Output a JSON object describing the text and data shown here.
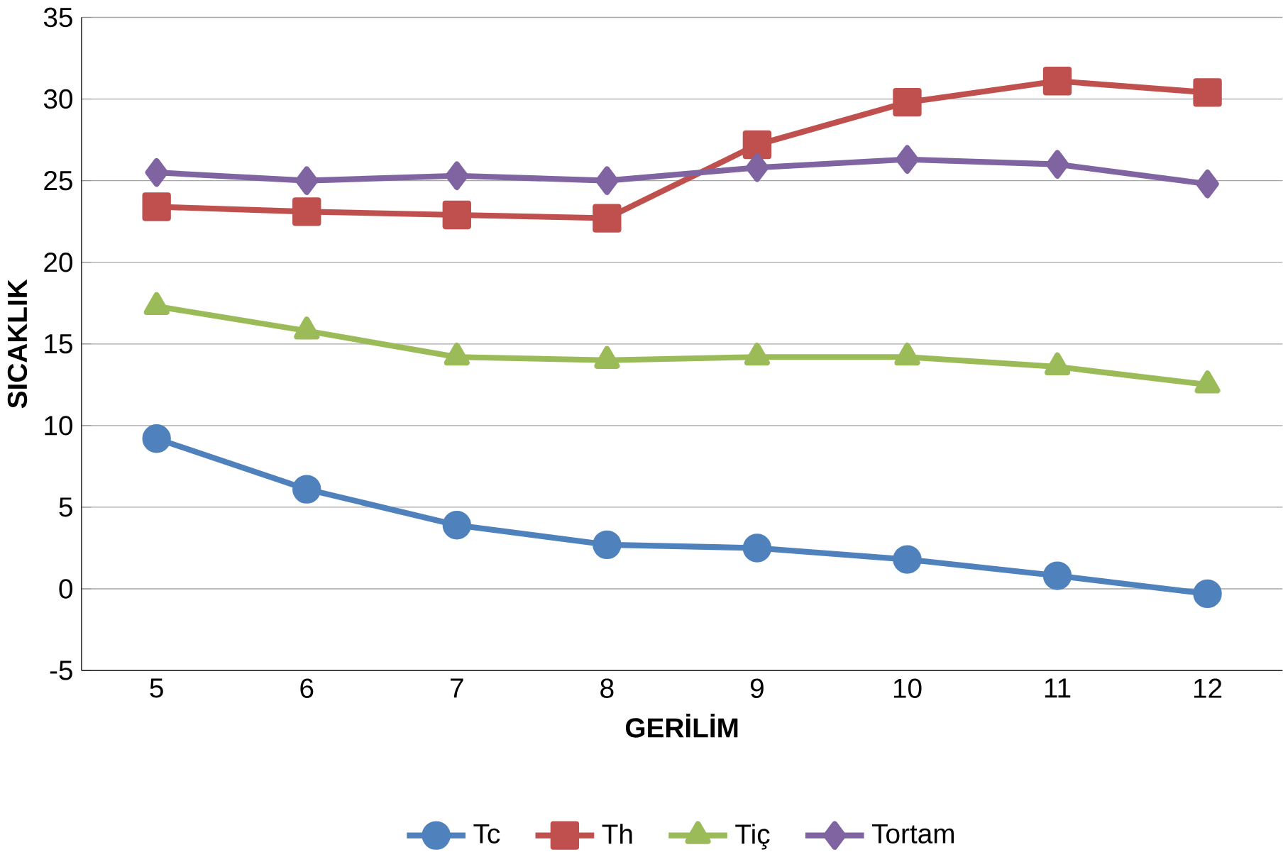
{
  "chart_data": {
    "type": "line",
    "xlabel": "GERİLİM",
    "ylabel": "SICAKLIK",
    "categories": [
      "5",
      "6",
      "7",
      "8",
      "9",
      "10",
      "11",
      "12"
    ],
    "series": [
      {
        "name": "Tc",
        "color": "#4f81bd",
        "marker": "circle",
        "values": [
          9.2,
          6.1,
          3.9,
          2.7,
          2.5,
          1.8,
          0.8,
          -0.3
        ]
      },
      {
        "name": "Th",
        "color": "#c0504d",
        "marker": "square",
        "values": [
          23.4,
          23.1,
          22.9,
          22.7,
          27.2,
          29.8,
          31.1,
          30.4
        ]
      },
      {
        "name": "Tiç",
        "color": "#9bbb59",
        "marker": "triangle",
        "values": [
          17.3,
          15.8,
          14.2,
          14.0,
          14.2,
          14.2,
          13.6,
          12.5
        ]
      },
      {
        "name": "Tortam",
        "color": "#8064a2",
        "marker": "diamond",
        "values": [
          25.5,
          25.0,
          25.3,
          25.0,
          25.8,
          26.3,
          26.0,
          24.8
        ]
      }
    ],
    "ylim": [
      -5,
      35
    ],
    "yticks": [
      -5,
      0,
      5,
      10,
      15,
      20,
      25,
      30,
      35
    ],
    "grid": "y",
    "legend": "bottom"
  }
}
